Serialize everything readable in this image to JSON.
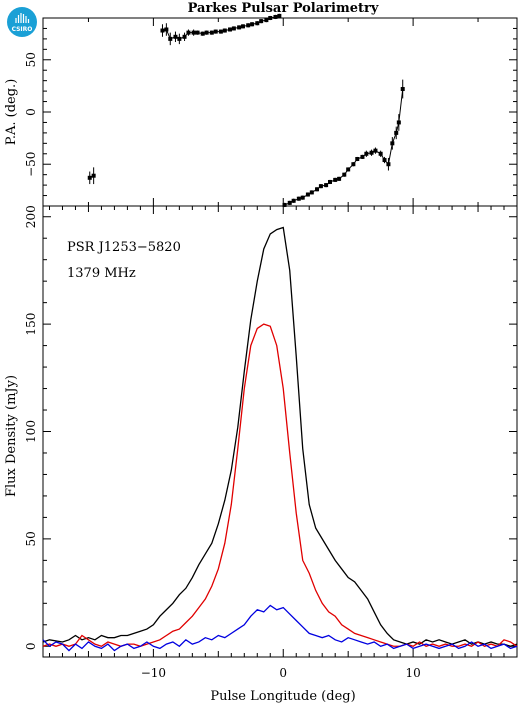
{
  "title": "Parkes Pulsar Polarimetry",
  "logo": {
    "text": "CSIRO",
    "icon": "csiro-logo-icon",
    "color": "#1aa0d6"
  },
  "colors": {
    "total": "#000000",
    "linear": "#e00000",
    "circular": "#0000e0",
    "pa": "#000000"
  },
  "chart_data": [
    {
      "type": "scatter",
      "panel": "position-angle",
      "ylabel": "P.A. (deg.)",
      "xlim": [
        -18.5,
        18
      ],
      "ylim": [
        -90,
        90
      ],
      "yticks": [
        -50,
        0,
        50
      ],
      "pa_points": [
        [
          -14.9,
          -63,
          6
        ],
        [
          -14.6,
          -61,
          8
        ],
        [
          -9.3,
          78,
          6
        ],
        [
          -9.0,
          79,
          6
        ],
        [
          -8.7,
          70,
          6
        ],
        [
          -8.3,
          72,
          5
        ],
        [
          -8.0,
          70,
          5
        ],
        [
          -7.6,
          72,
          4
        ],
        [
          -7.3,
          76,
          3
        ],
        [
          -6.9,
          76,
          3
        ],
        [
          -6.6,
          76,
          2
        ],
        [
          -6.2,
          75,
          2
        ],
        [
          -5.9,
          76,
          2
        ],
        [
          -5.5,
          76,
          2
        ],
        [
          -5.2,
          77,
          2
        ],
        [
          -4.8,
          77,
          2
        ],
        [
          -4.5,
          78,
          2
        ],
        [
          -4.1,
          79,
          2
        ],
        [
          -3.8,
          80,
          2
        ],
        [
          -3.4,
          81,
          2
        ],
        [
          -3.1,
          82,
          2
        ],
        [
          -2.7,
          83,
          2
        ],
        [
          -2.4,
          84,
          2
        ],
        [
          -2.0,
          85,
          2
        ],
        [
          -1.7,
          87,
          2
        ],
        [
          -1.3,
          88,
          2
        ],
        [
          -1.0,
          90,
          2
        ],
        [
          -0.6,
          91,
          2
        ],
        [
          -0.3,
          92,
          2
        ],
        [
          0.1,
          -89,
          2
        ],
        [
          0.5,
          -87,
          2
        ],
        [
          0.8,
          -85,
          2
        ],
        [
          1.2,
          -83,
          2
        ],
        [
          1.5,
          -82,
          2
        ],
        [
          1.9,
          -79,
          2
        ],
        [
          2.2,
          -77,
          2
        ],
        [
          2.6,
          -74,
          2
        ],
        [
          2.9,
          -71,
          2
        ],
        [
          3.3,
          -70,
          2
        ],
        [
          3.6,
          -67,
          2
        ],
        [
          4.0,
          -65,
          2
        ],
        [
          4.3,
          -64,
          2
        ],
        [
          4.7,
          -60,
          2
        ],
        [
          5.0,
          -55,
          2
        ],
        [
          5.4,
          -50,
          2
        ],
        [
          5.7,
          -45,
          2
        ],
        [
          6.1,
          -43,
          2
        ],
        [
          6.4,
          -40,
          3
        ],
        [
          6.8,
          -39,
          3
        ],
        [
          7.1,
          -37,
          3
        ],
        [
          7.5,
          -40,
          3
        ],
        [
          7.8,
          -46,
          3
        ],
        [
          8.1,
          -50,
          6
        ],
        [
          8.4,
          -30,
          6
        ],
        [
          8.7,
          -20,
          6
        ],
        [
          8.9,
          -10,
          8
        ],
        [
          9.2,
          22,
          9
        ]
      ]
    },
    {
      "type": "line",
      "panel": "flux-profile",
      "xlabel": "Pulse Longitude (deg)",
      "ylabel": "Flux Density (mJy)",
      "xlim": [
        -18.5,
        18
      ],
      "ylim": [
        -5,
        205
      ],
      "xticks": [
        -10,
        0,
        10
      ],
      "yticks": [
        0,
        50,
        100,
        150,
        200
      ],
      "annotations": [
        "PSR J1253−5820",
        "1379 MHz"
      ],
      "series": [
        {
          "key": "total",
          "x": [
            -18.5,
            -18,
            -17,
            -16.5,
            -16,
            -15.5,
            -15,
            -14.5,
            -14,
            -13.5,
            -13,
            -12.5,
            -12,
            -11.5,
            -11,
            -10.5,
            -10,
            -9.5,
            -9,
            -8.5,
            -8,
            -7.5,
            -7,
            -6.5,
            -6,
            -5.5,
            -5,
            -4.5,
            -4,
            -3.5,
            -3,
            -2.5,
            -2,
            -1.5,
            -1,
            -0.5,
            0,
            0.5,
            1,
            1.5,
            2,
            2.5,
            3,
            3.5,
            4,
            4.5,
            5,
            5.5,
            6,
            6.5,
            7,
            7.5,
            8,
            8.5,
            9,
            9.5,
            10,
            10.5,
            11,
            11.5,
            12,
            12.5,
            13,
            13.5,
            14,
            14.5,
            15,
            15.5,
            16,
            16.5,
            17,
            17.5,
            18
          ],
          "values": [
            2,
            3,
            2,
            3,
            5,
            3,
            4,
            3,
            5,
            4,
            4,
            5,
            5,
            6,
            7,
            8,
            10,
            14,
            17,
            20,
            24,
            27,
            32,
            38,
            43,
            48,
            57,
            68,
            82,
            102,
            128,
            152,
            170,
            185,
            192,
            194,
            195,
            175,
            135,
            92,
            66,
            55,
            50,
            45,
            40,
            36,
            32,
            30,
            26,
            22,
            16,
            10,
            6,
            3,
            2,
            1,
            2,
            1,
            3,
            2,
            3,
            2,
            1,
            2,
            3,
            1,
            2,
            1,
            2,
            1,
            1,
            0,
            1
          ]
        },
        {
          "key": "linear",
          "x": [
            -18.5,
            -18,
            -17.5,
            -17,
            -16.5,
            -16,
            -15.5,
            -15,
            -14.5,
            -14,
            -13.5,
            -13,
            -12.5,
            -12,
            -11.5,
            -11,
            -10.5,
            -10,
            -9.5,
            -9,
            -8.5,
            -8,
            -7.5,
            -7,
            -6.5,
            -6,
            -5.5,
            -5,
            -4.5,
            -4,
            -3.5,
            -3,
            -2.5,
            -2,
            -1.5,
            -1,
            -0.5,
            0,
            0.5,
            1,
            1.5,
            2,
            2.5,
            3,
            3.5,
            4,
            4.5,
            5,
            5.5,
            6,
            6.5,
            7,
            7.5,
            8,
            8.5,
            9,
            9.5,
            10,
            10.5,
            11,
            11.5,
            12,
            12.5,
            13,
            13.5,
            14,
            14.5,
            15,
            15.5,
            16,
            16.5,
            17,
            17.5,
            18
          ],
          "values": [
            0,
            1,
            0,
            1,
            0,
            1,
            5,
            3,
            1,
            0,
            2,
            1,
            0,
            1,
            1,
            0,
            1,
            2,
            3,
            5,
            7,
            8,
            11,
            14,
            18,
            22,
            28,
            36,
            48,
            66,
            92,
            120,
            140,
            148,
            150,
            149,
            140,
            120,
            90,
            62,
            40,
            34,
            26,
            20,
            16,
            14,
            10,
            8,
            6,
            5,
            4,
            3,
            2,
            1,
            0,
            0,
            1,
            0,
            2,
            0,
            1,
            0,
            1,
            0,
            0,
            1,
            0,
            2,
            0,
            1,
            0,
            3,
            2,
            0
          ]
        },
        {
          "key": "circular",
          "x": [
            -18.5,
            -18,
            -17.5,
            -17,
            -16.5,
            -16,
            -15.5,
            -15,
            -14.5,
            -14,
            -13.5,
            -13,
            -12.5,
            -12,
            -11.5,
            -11,
            -10.5,
            -10,
            -9.5,
            -9,
            -8.5,
            -8,
            -7.5,
            -7,
            -6.5,
            -6,
            -5.5,
            -5,
            -4.5,
            -4,
            -3.5,
            -3,
            -2.5,
            -2,
            -1.5,
            -1,
            -0.5,
            0,
            0.5,
            1,
            1.5,
            2,
            2.5,
            3,
            3.5,
            4,
            4.5,
            5,
            5.5,
            6,
            6.5,
            7,
            7.5,
            8,
            8.5,
            9,
            9.5,
            10,
            10.5,
            11,
            11.5,
            12,
            12.5,
            13,
            13.5,
            14,
            14.5,
            15,
            15.5,
            16,
            16.5,
            17,
            17.5,
            18
          ],
          "values": [
            3,
            0,
            2,
            1,
            -2,
            1,
            -1,
            2,
            0,
            -1,
            1,
            -2,
            0,
            1,
            -1,
            0,
            2,
            0,
            -1,
            1,
            2,
            0,
            3,
            1,
            2,
            4,
            3,
            5,
            4,
            6,
            8,
            10,
            14,
            17,
            16,
            19,
            17,
            18,
            15,
            12,
            9,
            6,
            5,
            4,
            5,
            3,
            2,
            4,
            3,
            2,
            1,
            2,
            0,
            1,
            -1,
            0,
            1,
            -1,
            0,
            1,
            0,
            -1,
            0,
            1,
            -1,
            0,
            2,
            0,
            1,
            -1,
            0,
            1,
            -1,
            0
          ]
        }
      ]
    }
  ]
}
